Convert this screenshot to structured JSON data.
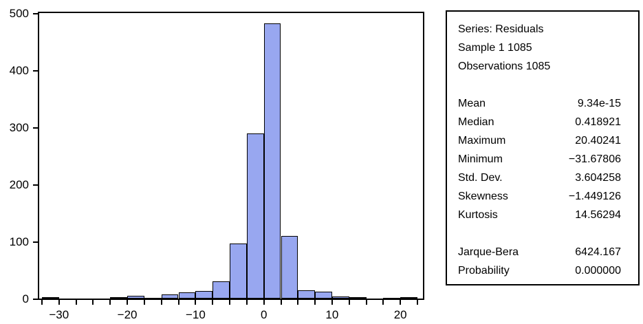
{
  "figure": {
    "background": "#ffffff",
    "frame_color": "#000000",
    "bar_fill": "#98a7f0",
    "bar_border": "#000000"
  },
  "chart_data": {
    "type": "bar",
    "subtype": "histogram",
    "title": "",
    "xlabel": "",
    "ylabel": "",
    "grid": false,
    "legend": "none",
    "ylim": [
      0,
      500
    ],
    "xlim": [
      -32.9,
      23.3
    ],
    "bin_width": 2.5,
    "bin_left": [
      -32.5,
      -30,
      -27.5,
      -25,
      -22.5,
      -20,
      -17.5,
      -15,
      -12.5,
      -10,
      -7.5,
      -5,
      -2.5,
      0,
      2.5,
      5,
      7.5,
      10,
      12.5,
      15,
      17.5,
      20
    ],
    "counts": [
      2,
      0,
      0,
      0,
      2,
      5,
      1,
      7,
      11,
      13,
      30,
      97,
      289,
      482,
      110,
      15,
      12,
      4,
      2,
      0,
      1,
      2
    ],
    "y_axis": {
      "tick_values": [
        0,
        100,
        200,
        300,
        400,
        500
      ],
      "tick_labels": [
        "0",
        "100",
        "200",
        "300",
        "400",
        "500"
      ]
    },
    "x_axis": {
      "minor_tick_step": 2.5,
      "minor_tick_start": -32.5,
      "minor_tick_end": 22.5,
      "labeled_tick_values": [
        -30,
        -20,
        -10,
        0,
        10,
        20
      ],
      "labeled_tick_labels": [
        "−30",
        "−20",
        "−10",
        "0",
        "10",
        "20"
      ]
    }
  },
  "stats_box": {
    "header_lines": [
      "Series: Residuals",
      "Sample 1 1085",
      "Observations 1085"
    ],
    "rows_main": [
      {
        "label": "Mean",
        "value": "9.34e-15"
      },
      {
        "label": "Median",
        "value": "0.418921"
      },
      {
        "label": "Maximum",
        "value": "20.40241"
      },
      {
        "label": "Minimum",
        "value": "−31.67806"
      },
      {
        "label": "Std. Dev.",
        "value": "3.604258"
      },
      {
        "label": "Skewness",
        "value": "−1.449126"
      },
      {
        "label": "Kurtosis",
        "value": "14.56294"
      }
    ],
    "rows_test": [
      {
        "label": "Jarque-Bera",
        "value": "6424.167"
      },
      {
        "label": "Probability",
        "value": "0.000000"
      }
    ]
  }
}
